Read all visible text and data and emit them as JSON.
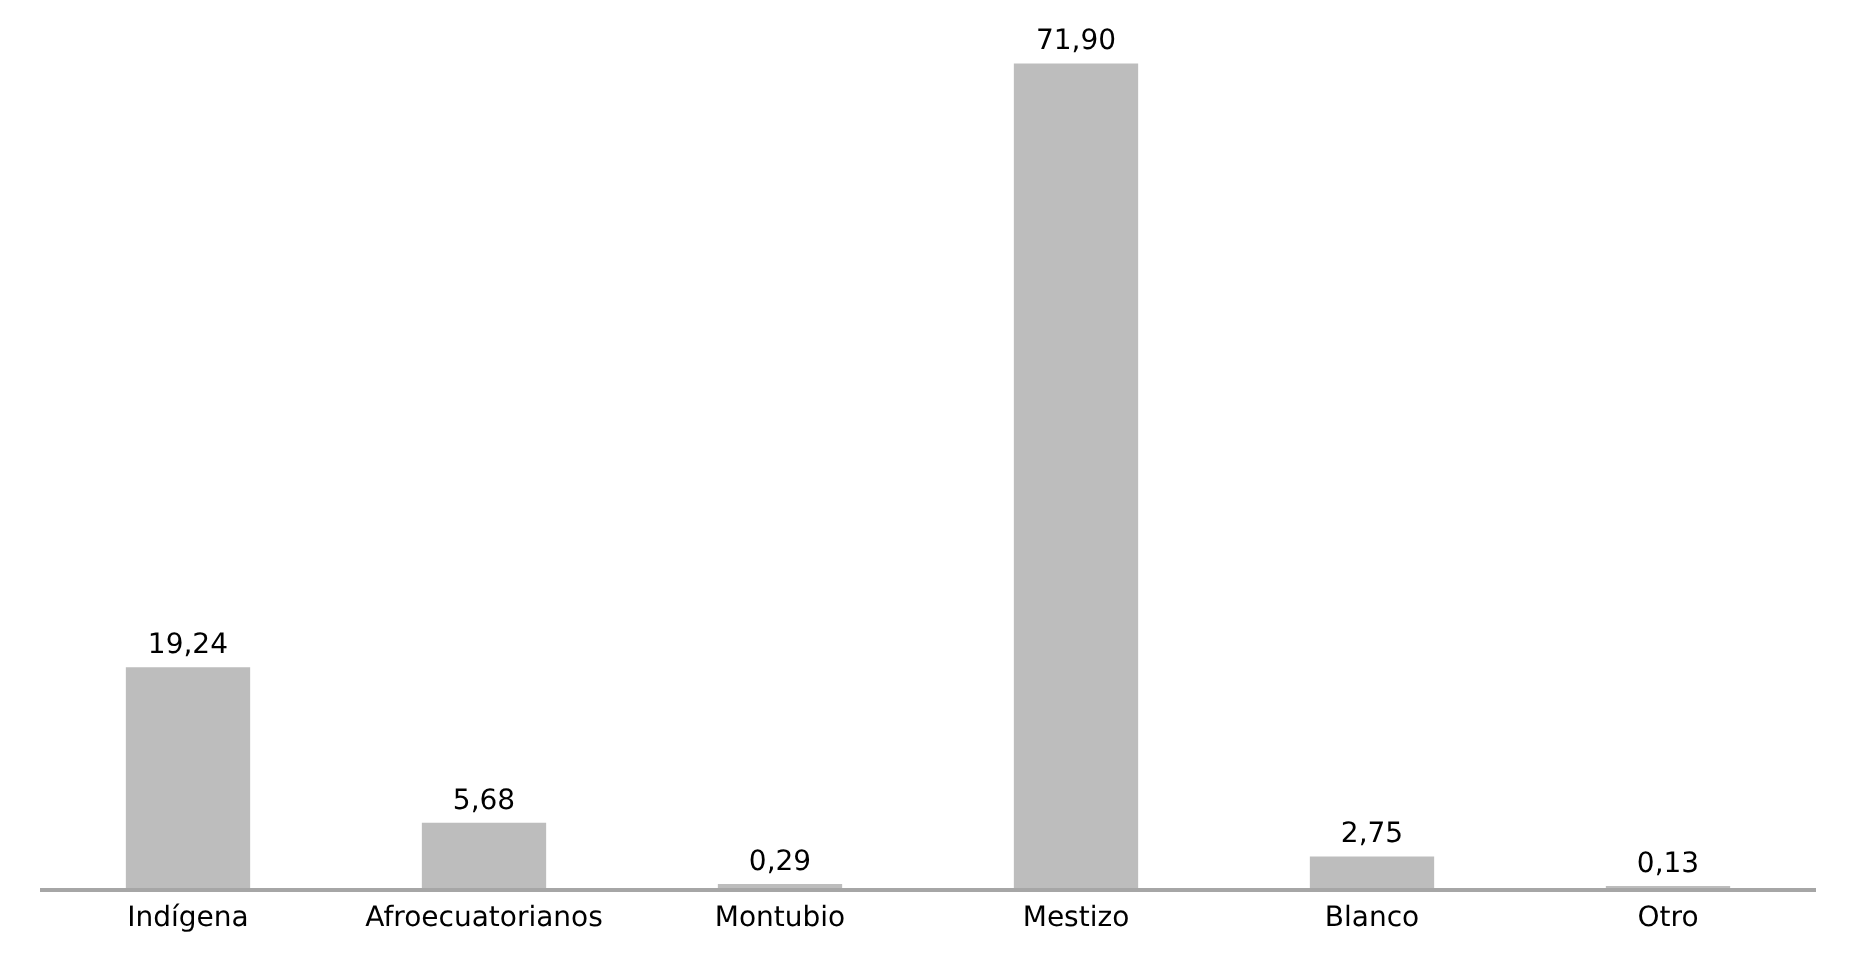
{
  "chart_data": {
    "type": "bar",
    "categories": [
      "Indígena",
      "Afroecuatorianos",
      "Montubio",
      "Mestizo",
      "Blanco",
      "Otro"
    ],
    "values": [
      19.24,
      5.68,
      0.29,
      71.9,
      2.75,
      0.13
    ],
    "value_labels": [
      "19,24",
      "5,68",
      "0,29",
      "71,90",
      "2,75",
      "0,13"
    ],
    "color": "#bdbdbd"
  }
}
